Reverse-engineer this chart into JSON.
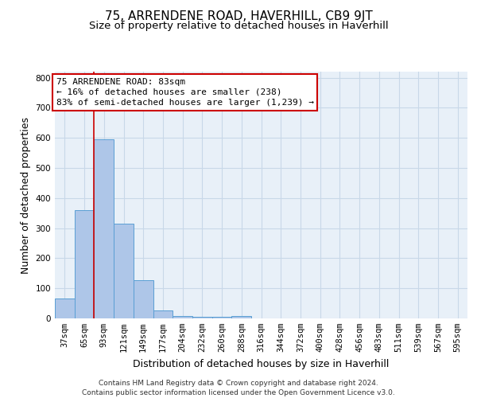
{
  "title": "75, ARRENDENE ROAD, HAVERHILL, CB9 9JT",
  "subtitle": "Size of property relative to detached houses in Haverhill",
  "xlabel": "Distribution of detached houses by size in Haverhill",
  "ylabel": "Number of detached properties",
  "categories": [
    "37sqm",
    "65sqm",
    "93sqm",
    "121sqm",
    "149sqm",
    "177sqm",
    "204sqm",
    "232sqm",
    "260sqm",
    "288sqm",
    "316sqm",
    "344sqm",
    "372sqm",
    "400sqm",
    "428sqm",
    "456sqm",
    "483sqm",
    "511sqm",
    "539sqm",
    "567sqm",
    "595sqm"
  ],
  "values": [
    67,
    360,
    595,
    316,
    128,
    26,
    9,
    6,
    6,
    8,
    0,
    0,
    0,
    0,
    0,
    0,
    0,
    0,
    0,
    0,
    0
  ],
  "bar_color": "#aec6e8",
  "bar_edge_color": "#5a9fd4",
  "grid_color": "#c8d8e8",
  "background_color": "#e8f0f8",
  "vline_x": 1.5,
  "vline_color": "#cc0000",
  "annotation_text": "75 ARRENDENE ROAD: 83sqm\n← 16% of detached houses are smaller (238)\n83% of semi-detached houses are larger (1,239) →",
  "annotation_box_color": "#cc0000",
  "ylim": [
    0,
    820
  ],
  "yticks": [
    0,
    100,
    200,
    300,
    400,
    500,
    600,
    700,
    800
  ],
  "footnote": "Contains HM Land Registry data © Crown copyright and database right 2024.\nContains public sector information licensed under the Open Government Licence v3.0.",
  "title_fontsize": 11,
  "subtitle_fontsize": 9.5,
  "xlabel_fontsize": 9,
  "ylabel_fontsize": 9,
  "tick_fontsize": 7.5,
  "annotation_fontsize": 8,
  "footnote_fontsize": 6.5
}
